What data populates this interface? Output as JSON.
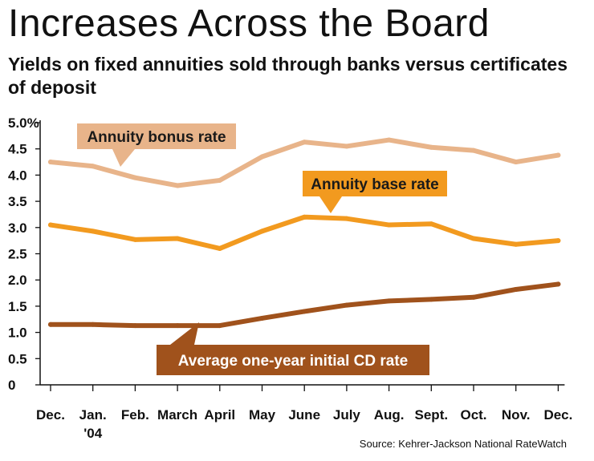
{
  "header": {
    "title": "Increases Across the Board",
    "subtitle": "Yields on fixed annuities sold through banks versus certificates of deposit"
  },
  "source": "Source: Kehrer-Jackson National RateWatch",
  "colors": {
    "bonus": "#e8b48a",
    "base": "#f29a1f",
    "cd": "#a0521c",
    "bonus_label_text": "#1a1a1a",
    "base_label_text": "#1a1a1a",
    "cd_label_text": "#ffffff"
  },
  "chart_data": {
    "type": "line",
    "title": "Increases Across the Board",
    "xlabel": "",
    "ylabel": "",
    "ylim": [
      0,
      5.0
    ],
    "y_ticks": [
      "0",
      "0.5",
      "1.0",
      "1.5",
      "2.0",
      "2.5",
      "3.0",
      "3.5",
      "4.0",
      "4.5",
      "5.0%"
    ],
    "categories": [
      "Dec.",
      "Jan.",
      "Feb.",
      "March",
      "April",
      "May",
      "June",
      "July",
      "Aug.",
      "Sept.",
      "Oct.",
      "Nov.",
      "Dec."
    ],
    "category_sublabels": [
      "",
      "'04",
      "",
      "",
      "",
      "",
      "",
      "",
      "",
      "",
      "",
      "",
      ""
    ],
    "grid": false,
    "series": [
      {
        "name": "Annuity bonus rate",
        "values": [
          4.25,
          4.17,
          3.95,
          3.8,
          3.9,
          4.35,
          4.63,
          4.55,
          4.67,
          4.53,
          4.47,
          4.25,
          4.38
        ]
      },
      {
        "name": "Annuity base rate",
        "values": [
          3.05,
          2.93,
          2.77,
          2.79,
          2.6,
          2.93,
          3.2,
          3.17,
          3.05,
          3.07,
          2.79,
          2.68,
          2.75
        ]
      },
      {
        "name": "Average one-year initial CD rate",
        "values": [
          1.15,
          1.15,
          1.13,
          1.13,
          1.13,
          1.27,
          1.4,
          1.52,
          1.6,
          1.63,
          1.67,
          1.82,
          1.92
        ]
      }
    ]
  }
}
